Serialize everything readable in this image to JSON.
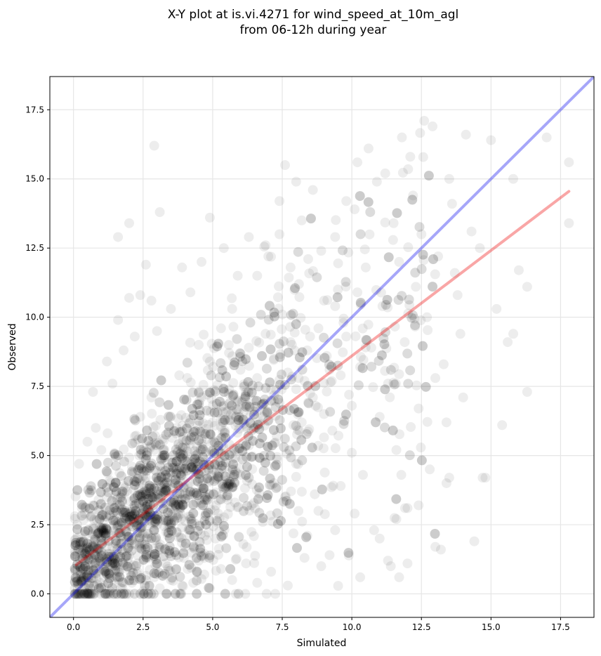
{
  "chart_data": {
    "type": "scatter",
    "title_line1": "X-Y plot at is.vi.4271 for wind_speed_at_10m_agl",
    "title_line2": "from 06-12h during year",
    "xlabel": "Simulated",
    "ylabel": "Observed",
    "xlim": [
      -0.85,
      18.7
    ],
    "ylim": [
      -0.85,
      18.7
    ],
    "xticks": [
      0.0,
      2.5,
      5.0,
      7.5,
      10.0,
      12.5,
      15.0,
      17.5
    ],
    "yticks": [
      0.0,
      2.5,
      5.0,
      7.5,
      10.0,
      12.5,
      15.0,
      17.5
    ],
    "xtick_labels": [
      "0.0",
      "2.5",
      "5.0",
      "7.5",
      "10.0",
      "12.5",
      "15.0",
      "17.5"
    ],
    "ytick_labels": [
      "0.0",
      "2.5",
      "5.0",
      "7.5",
      "10.0",
      "12.5",
      "15.0",
      "17.5"
    ],
    "grid": true,
    "point_color": "#000000",
    "point_opacity": 0.07,
    "identity_line": {
      "from": [
        -0.85,
        -0.85
      ],
      "to": [
        18.7,
        18.7
      ],
      "color": "#0000ee",
      "opacity": 0.35
    },
    "regression_line": {
      "from": [
        0.1,
        1.05
      ],
      "to": [
        17.8,
        14.55
      ],
      "color": "#ee0000",
      "opacity": 0.35
    },
    "points": [
      [
        0.3,
        0.5
      ],
      [
        0.5,
        1.2
      ],
      [
        0.8,
        0.9
      ],
      [
        1.0,
        1.5
      ],
      [
        1.2,
        0.7
      ],
      [
        1.4,
        2.1
      ],
      [
        1.6,
        1.3
      ],
      [
        1.8,
        0.4
      ],
      [
        2.0,
        2.5
      ],
      [
        2.2,
        1.8
      ],
      [
        0.4,
        2.9
      ],
      [
        0.6,
        0.2
      ],
      [
        0.9,
        3.4
      ],
      [
        1.1,
        2.2
      ],
      [
        1.3,
        4.1
      ],
      [
        1.5,
        0.9
      ],
      [
        1.7,
        3.0
      ],
      [
        1.9,
        2.7
      ],
      [
        2.1,
        4.6
      ],
      [
        2.3,
        1.1
      ],
      [
        2.5,
        3.3
      ],
      [
        2.7,
        2.0
      ],
      [
        2.9,
        5.2
      ],
      [
        3.1,
        1.6
      ],
      [
        3.3,
        4.0
      ],
      [
        3.5,
        3.1
      ],
      [
        3.7,
        6.0
      ],
      [
        3.9,
        2.4
      ],
      [
        4.1,
        4.8
      ],
      [
        4.3,
        3.6
      ],
      [
        2.4,
        6.4
      ],
      [
        2.6,
        0.5
      ],
      [
        2.8,
        7.1
      ],
      [
        3.0,
        2.8
      ],
      [
        3.2,
        5.6
      ],
      [
        3.4,
        0.9
      ],
      [
        3.6,
        4.4
      ],
      [
        3.8,
        7.9
      ],
      [
        4.0,
        1.7
      ],
      [
        4.2,
        6.3
      ],
      [
        4.4,
        5.0
      ],
      [
        4.6,
        3.9
      ],
      [
        4.8,
        7.2
      ],
      [
        5.0,
        4.5
      ],
      [
        5.2,
        2.9
      ],
      [
        5.4,
        6.8
      ],
      [
        5.6,
        5.4
      ],
      [
        5.8,
        3.3
      ],
      [
        6.0,
        8.1
      ],
      [
        6.2,
        6.0
      ],
      [
        4.5,
        9.0
      ],
      [
        4.7,
        1.3
      ],
      [
        4.9,
        8.4
      ],
      [
        5.1,
        2.0
      ],
      [
        5.3,
        9.6
      ],
      [
        5.5,
        4.1
      ],
      [
        5.7,
        10.3
      ],
      [
        5.9,
        7.0
      ],
      [
        6.1,
        1.8
      ],
      [
        6.3,
        8.9
      ],
      [
        6.5,
        6.6
      ],
      [
        6.7,
        4.9
      ],
      [
        6.9,
        9.4
      ],
      [
        7.1,
        7.4
      ],
      [
        7.3,
        5.7
      ],
      [
        7.5,
        10.1
      ],
      [
        7.7,
        8.0
      ],
      [
        7.9,
        6.1
      ],
      [
        8.1,
        11.2
      ],
      [
        8.3,
        7.7
      ],
      [
        6.4,
        3.2
      ],
      [
        6.6,
        11.5
      ],
      [
        6.8,
        2.6
      ],
      [
        7.0,
        12.2
      ],
      [
        7.2,
        4.0
      ],
      [
        7.4,
        13.0
      ],
      [
        7.6,
        3.5
      ],
      [
        7.8,
        11.8
      ],
      [
        8.0,
        4.7
      ],
      [
        8.2,
        13.5
      ],
      [
        8.5,
        9.3
      ],
      [
        8.7,
        6.8
      ],
      [
        8.9,
        12.4
      ],
      [
        9.1,
        8.6
      ],
      [
        9.3,
        5.9
      ],
      [
        9.5,
        11.0
      ],
      [
        9.7,
        9.8
      ],
      [
        9.9,
        7.2
      ],
      [
        10.1,
        13.9
      ],
      [
        10.3,
        8.2
      ],
      [
        8.4,
        2.1
      ],
      [
        8.6,
        14.6
      ],
      [
        8.8,
        3.0
      ],
      [
        9.0,
        10.6
      ],
      [
        9.2,
        1.4
      ],
      [
        9.4,
        12.9
      ],
      [
        9.6,
        3.9
      ],
      [
        9.8,
        14.2
      ],
      [
        10.0,
        5.1
      ],
      [
        10.2,
        15.6
      ],
      [
        10.5,
        11.8
      ],
      [
        10.7,
        8.9
      ],
      [
        10.9,
        14.9
      ],
      [
        11.1,
        10.4
      ],
      [
        11.3,
        7.6
      ],
      [
        11.5,
        13.4
      ],
      [
        11.7,
        12.0
      ],
      [
        11.9,
        9.1
      ],
      [
        12.1,
        15.8
      ],
      [
        12.3,
        11.1
      ],
      [
        10.4,
        4.3
      ],
      [
        10.6,
        16.1
      ],
      [
        10.8,
        2.3
      ],
      [
        11.0,
        6.4
      ],
      [
        11.2,
        15.2
      ],
      [
        11.4,
        1.0
      ],
      [
        11.6,
        5.2
      ],
      [
        11.8,
        16.5
      ],
      [
        12.0,
        3.1
      ],
      [
        12.2,
        14.4
      ],
      [
        12.5,
        13.0
      ],
      [
        12.7,
        10.0
      ],
      [
        12.9,
        16.9
      ],
      [
        13.1,
        12.2
      ],
      [
        13.3,
        8.3
      ],
      [
        13.5,
        15.0
      ],
      [
        13.7,
        11.6
      ],
      [
        13.9,
        9.4
      ],
      [
        14.1,
        16.6
      ],
      [
        14.3,
        13.1
      ],
      [
        12.4,
        6.7
      ],
      [
        12.6,
        17.1
      ],
      [
        12.8,
        4.5
      ],
      [
        13.0,
        7.8
      ],
      [
        13.2,
        1.6
      ],
      [
        13.4,
        6.2
      ],
      [
        13.6,
        14.1
      ],
      [
        13.8,
        10.8
      ],
      [
        14.0,
        7.1
      ],
      [
        14.4,
        1.9
      ],
      [
        14.6,
        12.5
      ],
      [
        14.8,
        4.2
      ],
      [
        15.0,
        16.4
      ],
      [
        15.2,
        10.3
      ],
      [
        15.4,
        6.1
      ],
      [
        15.6,
        9.1
      ],
      [
        15.8,
        15.0
      ],
      [
        16.0,
        11.7
      ],
      [
        16.3,
        7.3
      ],
      [
        16.3,
        11.1
      ],
      [
        17.0,
        16.5
      ],
      [
        17.8,
        15.6
      ],
      [
        17.8,
        13.4
      ],
      [
        15.8,
        9.4
      ],
      [
        14.7,
        4.2
      ],
      [
        2.9,
        16.2
      ],
      [
        3.1,
        13.8
      ],
      [
        2.0,
        13.4
      ],
      [
        1.6,
        12.9
      ],
      [
        4.9,
        13.6
      ],
      [
        0.2,
        4.7
      ],
      [
        0.3,
        3.1
      ],
      [
        0.1,
        2.0
      ],
      [
        0.2,
        1.0
      ],
      [
        0.3,
        0.1
      ],
      [
        0.5,
        5.5
      ],
      [
        0.7,
        7.3
      ],
      [
        0.8,
        6.0
      ],
      [
        1.0,
        5.2
      ],
      [
        1.2,
        8.4
      ],
      [
        1.4,
        7.6
      ],
      [
        1.6,
        9.9
      ],
      [
        1.8,
        8.8
      ],
      [
        2.0,
        10.7
      ],
      [
        2.2,
        9.3
      ],
      [
        2.4,
        10.8
      ],
      [
        2.6,
        11.9
      ],
      [
        2.8,
        10.6
      ],
      [
        3.0,
        9.5
      ],
      [
        3.5,
        10.3
      ],
      [
        3.9,
        11.8
      ],
      [
        4.2,
        10.9
      ],
      [
        4.6,
        12.0
      ],
      [
        5.4,
        12.5
      ],
      [
        5.9,
        11.5
      ],
      [
        6.3,
        12.9
      ],
      [
        6.9,
        12.6
      ],
      [
        7.4,
        14.2
      ],
      [
        7.6,
        15.5
      ],
      [
        8.0,
        14.9
      ],
      [
        1.1,
        0.3
      ],
      [
        1.3,
        0.1
      ],
      [
        1.5,
        0.6
      ],
      [
        1.7,
        0.2
      ],
      [
        1.9,
        1.0
      ],
      [
        2.1,
        0.4
      ],
      [
        2.3,
        0.8
      ],
      [
        2.5,
        0.1
      ],
      [
        2.7,
        1.3
      ],
      [
        2.9,
        0.6
      ],
      [
        3.1,
        0.2
      ],
      [
        3.3,
        1.1
      ],
      [
        3.5,
        0.5
      ],
      [
        3.7,
        1.4
      ],
      [
        3.9,
        0.3
      ],
      [
        4.1,
        0.9
      ],
      [
        4.3,
        0.4
      ],
      [
        4.5,
        1.2
      ],
      [
        4.7,
        0.7
      ],
      [
        4.9,
        0.2
      ],
      [
        5.3,
        0.9
      ],
      [
        5.7,
        0.5
      ],
      [
        6.2,
        1.1
      ],
      [
        6.6,
        0.4
      ],
      [
        7.1,
        0.8
      ],
      [
        7.7,
        0.3
      ],
      [
        8.3,
        1.3
      ],
      [
        8.9,
        1.0
      ],
      [
        9.4,
        2.3
      ],
      [
        10.1,
        2.9
      ],
      [
        10.3,
        0.6
      ],
      [
        11.3,
        1.2
      ],
      [
        11.7,
        0.6
      ],
      [
        12.0,
        1.1
      ],
      [
        13.0,
        1.7
      ],
      [
        13.5,
        4.2
      ],
      [
        13.4,
        4.0
      ],
      [
        12.4,
        3.2
      ],
      [
        11.6,
        2.7
      ],
      [
        11.0,
        2.0
      ],
      [
        0.6,
        1.8
      ],
      [
        0.7,
        2.4
      ],
      [
        0.9,
        1.1
      ],
      [
        1.0,
        2.8
      ],
      [
        1.2,
        3.5
      ],
      [
        1.4,
        1.7
      ],
      [
        1.6,
        2.6
      ],
      [
        1.8,
        3.9
      ],
      [
        2.0,
        1.4
      ],
      [
        2.2,
        3.1
      ],
      [
        2.4,
        2.2
      ],
      [
        2.6,
        4.2
      ],
      [
        2.8,
        3.5
      ],
      [
        3.0,
        2.5
      ],
      [
        3.2,
        3.8
      ],
      [
        3.4,
        2.1
      ],
      [
        3.6,
        4.5
      ],
      [
        3.8,
        3.2
      ],
      [
        4.0,
        5.3
      ],
      [
        4.2,
        2.7
      ],
      [
        4.4,
        4.1
      ],
      [
        4.6,
        5.6
      ],
      [
        4.8,
        3.5
      ],
      [
        5.0,
        6.2
      ],
      [
        5.2,
        4.8
      ],
      [
        5.4,
        3.8
      ],
      [
        5.6,
        6.9
      ],
      [
        5.8,
        5.2
      ],
      [
        6.0,
        4.3
      ],
      [
        6.2,
        7.3
      ],
      [
        6.4,
        5.9
      ],
      [
        6.6,
        7.8
      ],
      [
        6.8,
        6.4
      ],
      [
        7.0,
        5.3
      ],
      [
        7.2,
        8.5
      ],
      [
        7.4,
        6.9
      ],
      [
        7.6,
        5.6
      ],
      [
        7.8,
        9.1
      ],
      [
        8.0,
        7.4
      ],
      [
        8.2,
        6.2
      ],
      [
        8.4,
        8.8
      ],
      [
        8.6,
        7.1
      ],
      [
        8.8,
        9.6
      ],
      [
        9.0,
        6.5
      ],
      [
        9.2,
        8.1
      ],
      [
        9.4,
        10.4
      ],
      [
        9.6,
        7.9
      ],
      [
        9.8,
        9.3
      ],
      [
        10.0,
        6.8
      ],
      [
        10.2,
        10.9
      ]
    ]
  }
}
